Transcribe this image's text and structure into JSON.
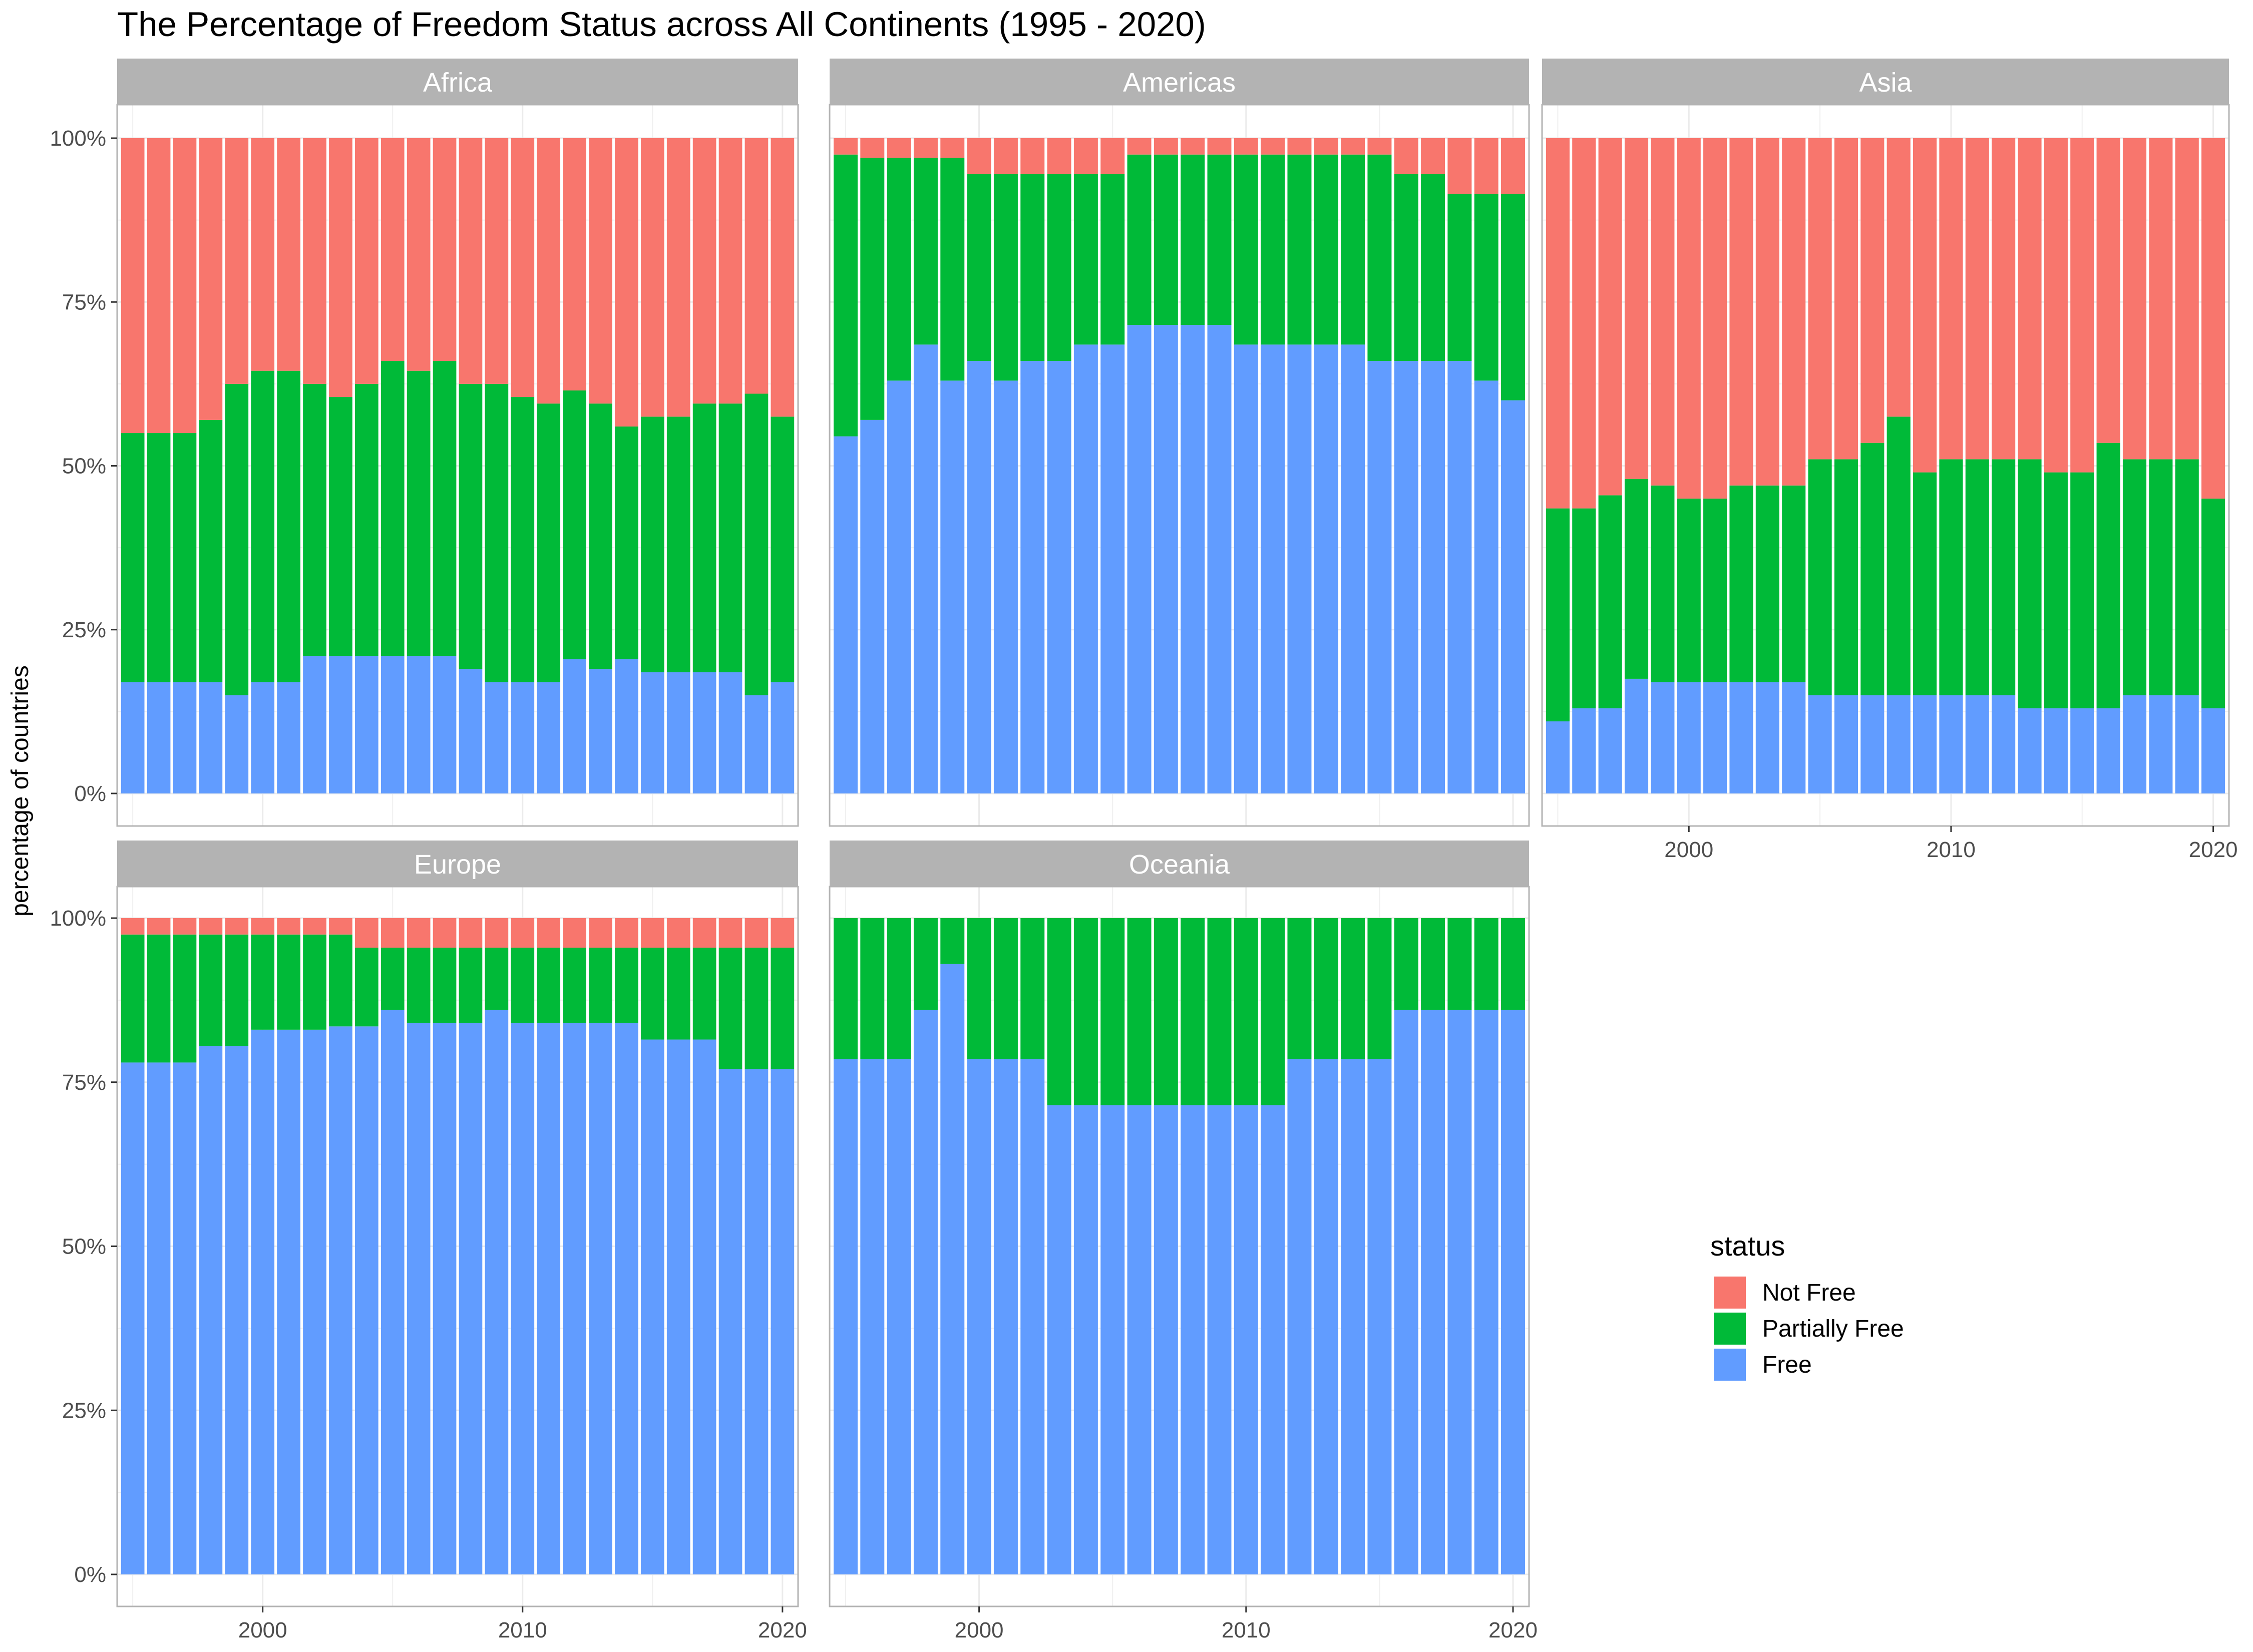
{
  "chart_data": {
    "type": "bar",
    "stacked": true,
    "title": "The Percentage of Freedom Status across All Continents (1995 - 2020)",
    "xlabel": "",
    "ylabel": "percentage of countries",
    "ylim": [
      0,
      100
    ],
    "yticks": [
      "0%",
      "25%",
      "50%",
      "75%",
      "100%"
    ],
    "xticks": [
      "2000",
      "2010",
      "2020"
    ],
    "grid": true,
    "legend": {
      "title": "status",
      "placement": "right",
      "entries": [
        {
          "name": "Not Free",
          "color": "#F8766D"
        },
        {
          "name": "Partially Free",
          "color": "#00BA38"
        },
        {
          "name": "Free",
          "color": "#619CFF"
        }
      ]
    },
    "years": [
      1995,
      1996,
      1997,
      1998,
      1999,
      2000,
      2001,
      2002,
      2003,
      2004,
      2005,
      2006,
      2007,
      2008,
      2009,
      2010,
      2011,
      2012,
      2013,
      2014,
      2015,
      2016,
      2017,
      2018,
      2019,
      2020
    ],
    "panels": [
      {
        "name": "Africa",
        "free": [
          17,
          17,
          17,
          17,
          15,
          17,
          17,
          21,
          21,
          21,
          21,
          21,
          21,
          19,
          17,
          17,
          17,
          20.5,
          19,
          20.5,
          18.5,
          18.5,
          18.5,
          18.5,
          15,
          17
        ],
        "partial": [
          38,
          38,
          38,
          40,
          47.5,
          47.5,
          47.5,
          41.5,
          39.5,
          41.5,
          45,
          43.5,
          45,
          43.5,
          45.5,
          43.5,
          42.5,
          41,
          40.5,
          35.5,
          39,
          39,
          41,
          41,
          46,
          40.5
        ]
      },
      {
        "name": "Americas",
        "free": [
          54.5,
          57,
          63,
          68.5,
          63,
          66,
          63,
          66,
          66,
          68.5,
          68.5,
          71.5,
          71.5,
          71.5,
          71.5,
          68.5,
          68.5,
          68.5,
          68.5,
          68.5,
          66,
          66,
          66,
          66,
          63,
          60
        ],
        "partial": [
          43,
          40,
          34,
          28.5,
          34,
          28.5,
          31.5,
          28.5,
          28.5,
          26,
          26,
          26,
          26,
          26,
          26,
          29,
          29,
          29,
          29,
          29,
          31.5,
          28.5,
          28.5,
          25.5,
          28.5,
          31.5
        ]
      },
      {
        "name": "Asia",
        "free": [
          11,
          13,
          13,
          17.5,
          17,
          17,
          17,
          17,
          17,
          17,
          15,
          15,
          15,
          15,
          15,
          15,
          15,
          15,
          13,
          13,
          13,
          13,
          15,
          15,
          15,
          13
        ],
        "partial": [
          32.5,
          30.5,
          32.5,
          30.5,
          30,
          28,
          28,
          30,
          30,
          30,
          36,
          36,
          38.5,
          42.5,
          34,
          36,
          36,
          36,
          38,
          36,
          36,
          40.5,
          36,
          36,
          36,
          32
        ]
      },
      {
        "name": "Europe",
        "free": [
          78,
          78,
          78,
          80.5,
          80.5,
          83,
          83,
          83,
          83.5,
          83.5,
          86,
          84,
          84,
          84,
          86,
          84,
          84,
          84,
          84,
          84,
          81.5,
          81.5,
          81.5,
          77,
          77,
          77
        ],
        "partial": [
          19.5,
          19.5,
          19.5,
          17,
          17,
          14.5,
          14.5,
          14.5,
          14,
          12,
          9.5,
          11.5,
          11.5,
          11.5,
          9.5,
          11.5,
          11.5,
          11.5,
          11.5,
          11.5,
          14,
          14,
          14,
          18.5,
          18.5,
          18.5
        ]
      },
      {
        "name": "Oceania",
        "free": [
          78.5,
          78.5,
          78.5,
          86,
          93,
          78.5,
          78.5,
          78.5,
          71.5,
          71.5,
          71.5,
          71.5,
          71.5,
          71.5,
          71.5,
          71.5,
          71.5,
          78.5,
          78.5,
          78.5,
          78.5,
          86,
          86,
          86,
          86,
          86
        ],
        "partial": [
          21.5,
          21.5,
          21.5,
          14,
          7,
          21.5,
          21.5,
          21.5,
          28.5,
          28.5,
          28.5,
          28.5,
          28.5,
          28.5,
          28.5,
          28.5,
          28.5,
          21.5,
          21.5,
          21.5,
          21.5,
          14,
          14,
          14,
          14,
          14
        ]
      }
    ]
  }
}
